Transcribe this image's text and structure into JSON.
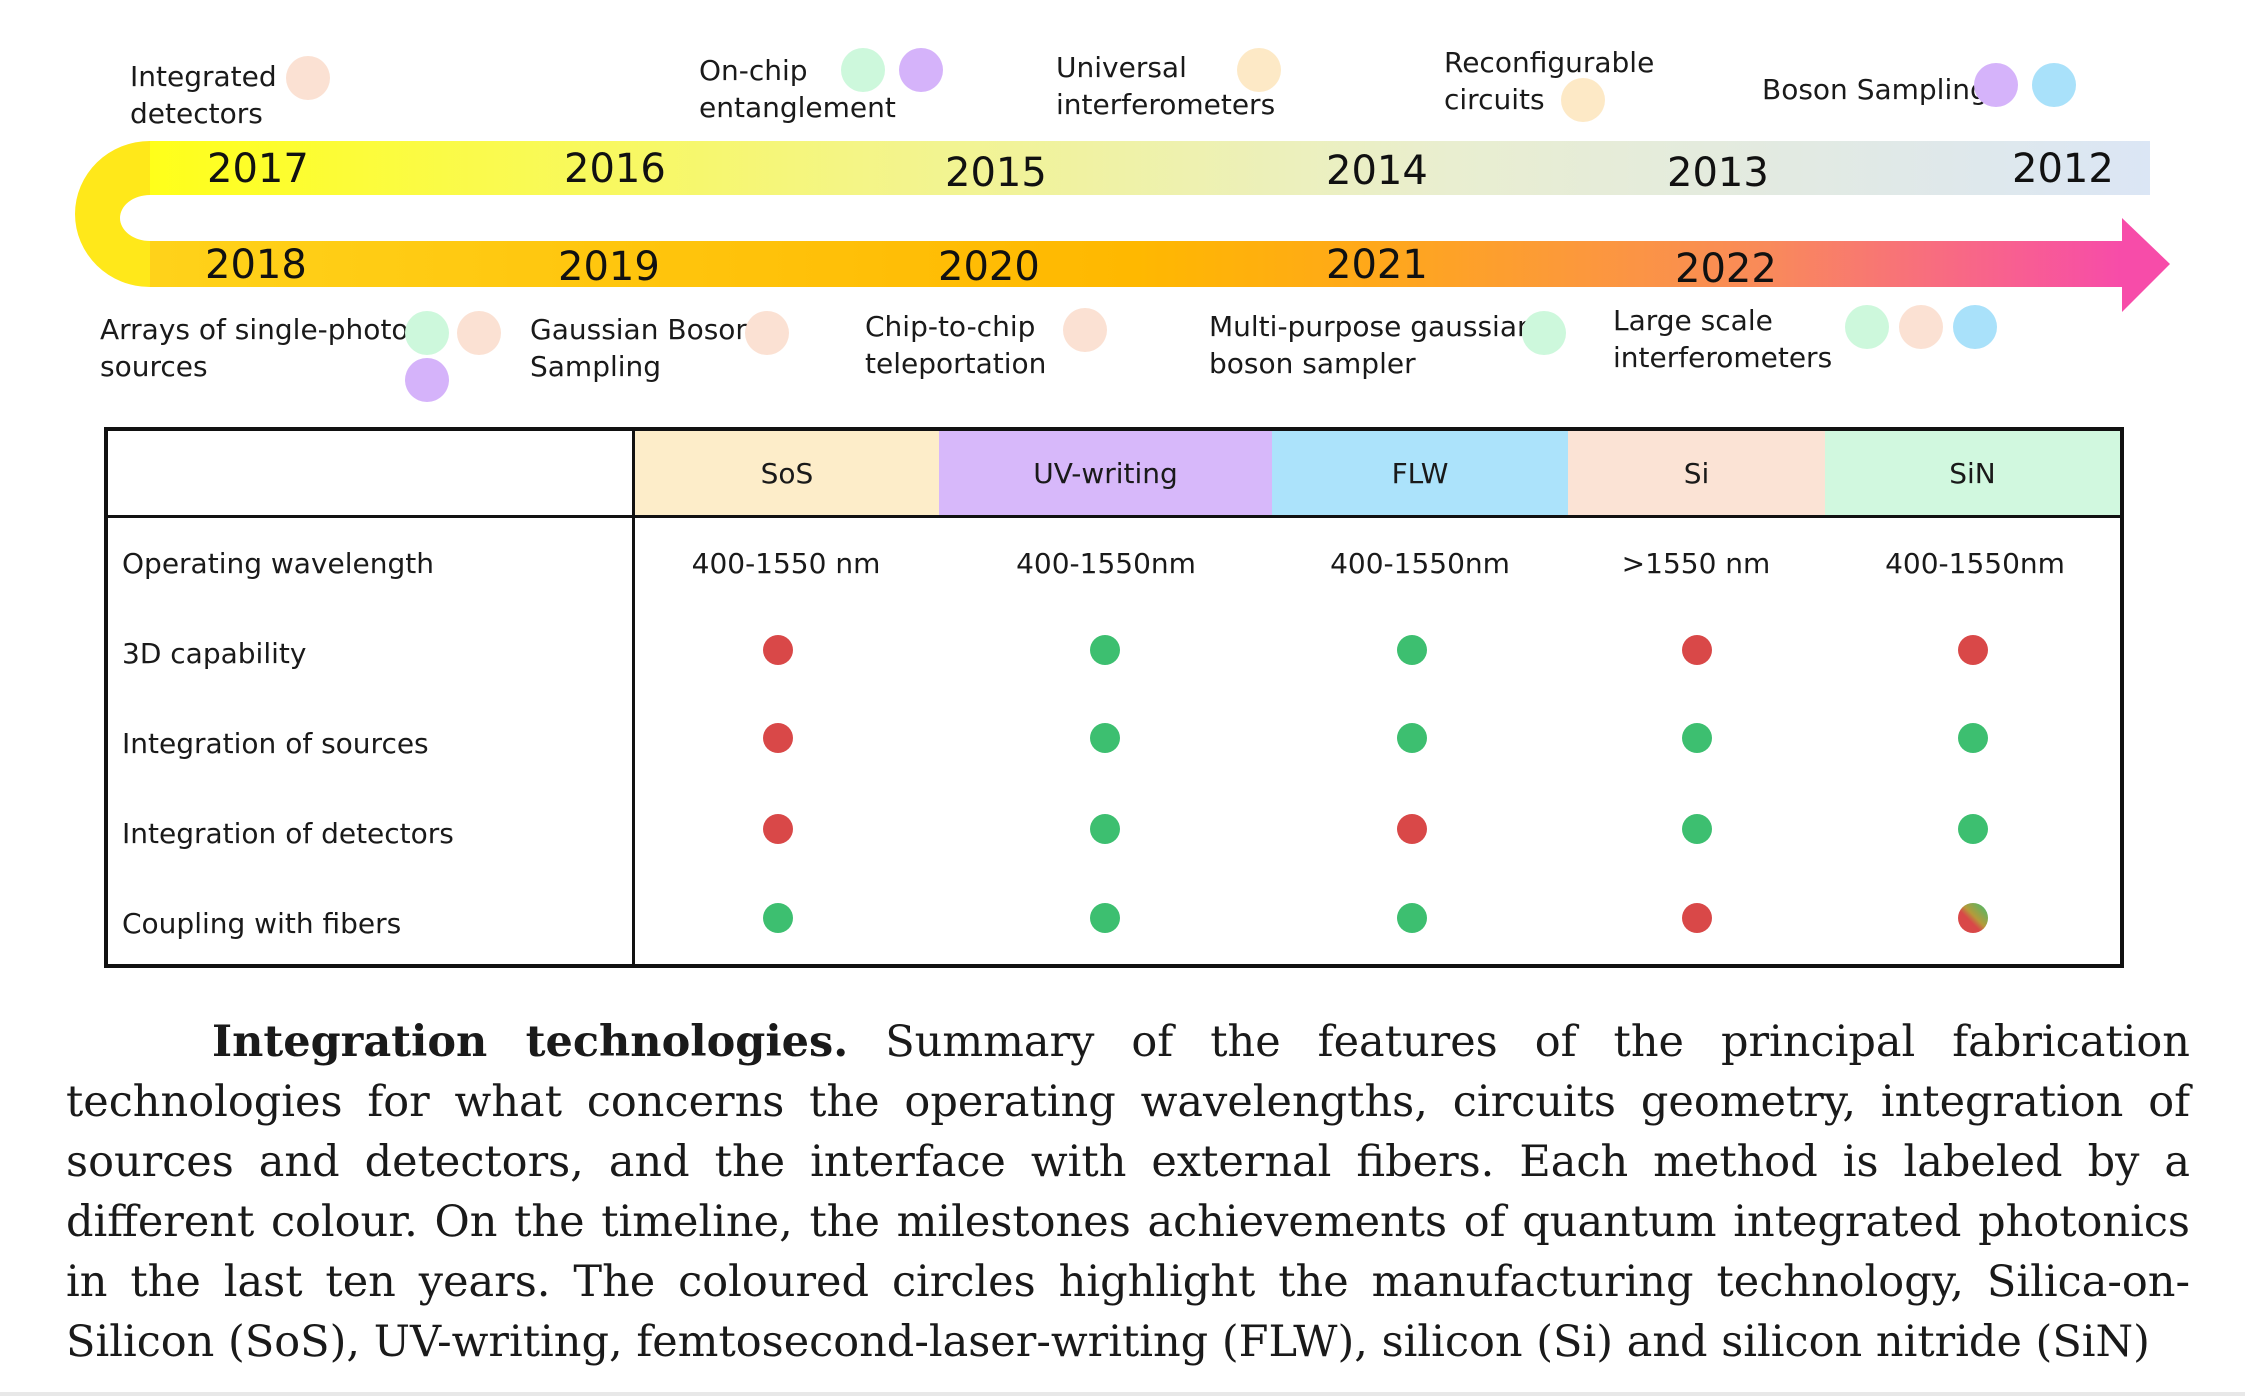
{
  "timeline": {
    "colors": {
      "upper_start": "#ffff1a",
      "upper_end": "#dbe6f5",
      "lower_start": "#ffd21a",
      "lower_mid": "#ffa81a",
      "lower_end": "#f74ca9"
    },
    "years_top": [
      "2017",
      "2016",
      "2015",
      "2014",
      "2013",
      "2012"
    ],
    "years_bottom": [
      "2018",
      "2019",
      "2020",
      "2021",
      "2022"
    ],
    "milestones_top": [
      {
        "line1": "Integrated",
        "line2": "detectors",
        "techs": [
          "Si"
        ]
      },
      {
        "line1": "On-chip",
        "line2": "entanglement",
        "techs": [
          "SiN",
          "UV-writing"
        ]
      },
      {
        "line1": "Universal",
        "line2": "interferometers",
        "techs": [
          "SoS"
        ]
      },
      {
        "line1": "Reconfigurable",
        "line2": "circuits",
        "techs": [
          "SoS"
        ]
      },
      {
        "line1": "Boson Sampling",
        "line2": "",
        "techs": [
          "UV-writing",
          "FLW"
        ]
      }
    ],
    "milestones_bottom": [
      {
        "line1": "Arrays of single-photon",
        "line2": "sources",
        "techs": [
          "SiN",
          "Si",
          "UV-writing"
        ]
      },
      {
        "line1": "Gaussian Boson",
        "line2": "Sampling",
        "techs": [
          "Si"
        ]
      },
      {
        "line1": "Chip-to-chip",
        "line2": "teleportation",
        "techs": [
          "Si"
        ]
      },
      {
        "line1": "Multi-purpose gaussian",
        "line2": "boson sampler",
        "techs": [
          "SiN"
        ]
      },
      {
        "line1": "Large scale",
        "line2": "interferometers",
        "techs": [
          "SiN",
          "Si",
          "FLW"
        ]
      }
    ]
  },
  "table": {
    "header_colors": {
      "SoS": "#fdedc9",
      "UV-writing": "#d7b8fa",
      "FLW": "#ace3fb",
      "Si": "#fbe3d5",
      "SiN": "#d1f8df"
    },
    "status_colors": {
      "yes": "#3dbf70",
      "no": "#d94848"
    },
    "columns": [
      "SoS",
      "UV-writing",
      "FLW",
      "Si",
      "SiN"
    ],
    "rows": [
      {
        "label": "Operating wavelength",
        "values": [
          "400-1550 nm",
          "400-1550nm",
          "400-1550nm",
          ">1550 nm",
          "400-1550nm"
        ]
      },
      {
        "label": "3D capability",
        "status": [
          "no",
          "yes",
          "yes",
          "no",
          "no"
        ]
      },
      {
        "label": "Integration of sources",
        "status": [
          "no",
          "yes",
          "yes",
          "yes",
          "yes"
        ]
      },
      {
        "label": "Integration of detectors",
        "status": [
          "no",
          "yes",
          "no",
          "yes",
          "yes"
        ]
      },
      {
        "label": "Coupling with fibers",
        "status": [
          "yes",
          "yes",
          "yes",
          "no",
          "partial"
        ]
      }
    ]
  },
  "caption": {
    "title": "Integration technologies.",
    "text": " Summary of the features of the principal fabrication technologies for what concerns the operating wavelengths, circuits geometry, integration of sources and detectors, and the interface with external fibers. Each method is labeled by a different colour. On the timeline, the milestones achievements of quantum integrated photonics in the last ten years. The coloured circles highlight the manufacturing technology, Silica-on-Silicon (SoS), UV-writing, femtosecond-laser-writing (FLW), silicon (Si) and silicon nitride (SiN)"
  }
}
